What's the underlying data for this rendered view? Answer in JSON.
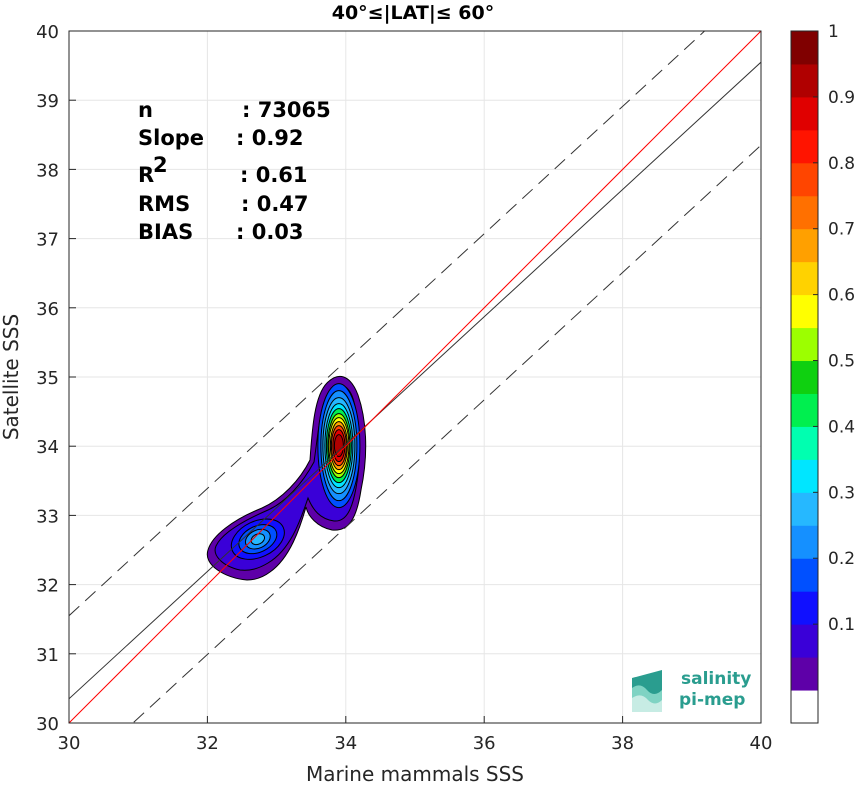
{
  "chart_data": {
    "type": "scatter",
    "title": "40°≤|LAT|≤ 60°",
    "xlabel": "Marine mammals SSS",
    "ylabel": "Satellite SSS",
    "xlim": [
      30,
      40
    ],
    "ylim": [
      30,
      40
    ],
    "xticks": [
      "30",
      "32",
      "34",
      "36",
      "38",
      "40"
    ],
    "yticks": [
      "30",
      "31",
      "32",
      "33",
      "34",
      "35",
      "36",
      "37",
      "38",
      "39",
      "40"
    ],
    "grid": true,
    "stats": [
      {
        "label": "n",
        "sep": ": ",
        "value": "73065"
      },
      {
        "label": "Slope",
        "sep": ": ",
        "value": "0.92"
      },
      {
        "label": "R",
        "sup": "2",
        "sep": ": ",
        "value": "0.61"
      },
      {
        "label": "RMS",
        "sep": ": ",
        "value": "0.47"
      },
      {
        "label": "BIAS",
        "sep": ": ",
        "value": "0.03"
      }
    ],
    "lines": {
      "identity": {
        "color": "#ff0000",
        "slope": 1,
        "intercept": 0
      },
      "fit": {
        "color": "#333333",
        "slope": 0.92,
        "intercept": 2.75
      },
      "upper_dashed": {
        "color": "#333333",
        "slope": 0.92,
        "intercept": 3.95
      },
      "lower_dashed": {
        "color": "#333333",
        "slope": 0.92,
        "intercept": 1.55
      }
    },
    "density_peaks": [
      {
        "x": 33.9,
        "y": 33.95,
        "value": 1.0
      },
      {
        "x": 32.7,
        "y": 32.7,
        "value": 0.35
      }
    ],
    "colorbar": {
      "range": [
        0,
        1
      ],
      "ticks": [
        "0.1",
        "0.2",
        "0.3",
        "0.4",
        "0.5",
        "0.6",
        "0.7",
        "0.8",
        "0.9",
        "1"
      ],
      "colors": [
        "#ffffff",
        "#5e00a8",
        "#3a00d8",
        "#1010ff",
        "#0050ff",
        "#1590ff",
        "#26b8ff",
        "#00e6ff",
        "#00ffb0",
        "#00ef4f",
        "#0fd010",
        "#9cff00",
        "#ffff00",
        "#ffd200",
        "#ffa000",
        "#ff7000",
        "#ff4500",
        "#ff1400",
        "#e00000",
        "#b00000",
        "#800000"
      ]
    },
    "logo": {
      "line1": "salinity",
      "line2": "pi-mep"
    }
  }
}
